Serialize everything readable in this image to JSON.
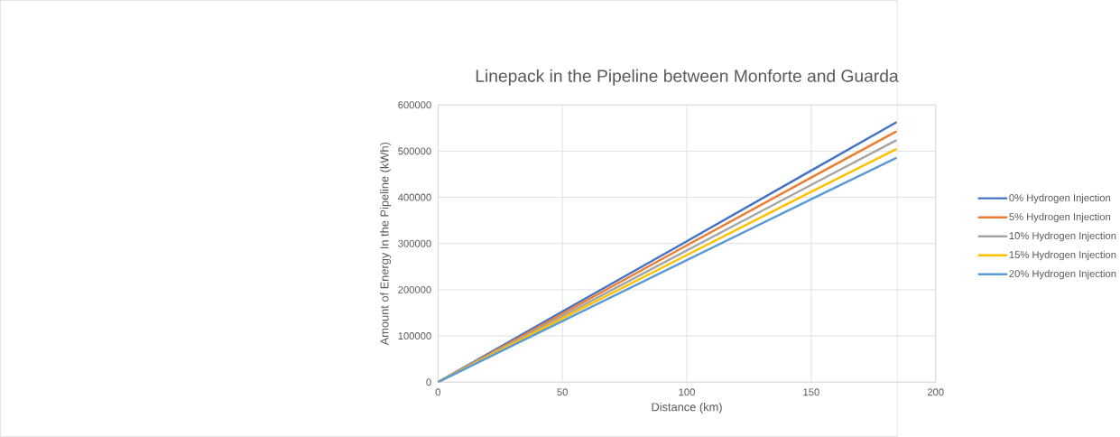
{
  "chart_data": {
    "type": "line",
    "title": "Linepack in the Pipeline between Monforte and Guarda",
    "xlabel": "Distance (km)",
    "ylabel": "Amount of Energy In the Pipeline (kWh)",
    "x": [
      0,
      50,
      100,
      150,
      184
    ],
    "series": [
      {
        "name": "0% Hydrogen Injection",
        "color": "#4472c4",
        "values": [
          0,
          153000,
          305000,
          458000,
          562000
        ]
      },
      {
        "name": "5% Hydrogen Injection",
        "color": "#ed7d31",
        "values": [
          0,
          148000,
          296000,
          443000,
          542000
        ]
      },
      {
        "name": "10% Hydrogen Injection",
        "color": "#a5a5a5",
        "values": [
          0,
          143000,
          285000,
          427000,
          523000
        ]
      },
      {
        "name": "15% Hydrogen Injection",
        "color": "#ffc000",
        "values": [
          0,
          138000,
          275000,
          412000,
          504000
        ]
      },
      {
        "name": "20% Hydrogen Injection",
        "color": "#5b9bd5",
        "values": [
          0,
          132000,
          264000,
          396000,
          485000
        ]
      }
    ],
    "xlim": [
      0,
      200
    ],
    "xticks": [
      0,
      50,
      100,
      150,
      200
    ],
    "ylim": [
      0,
      600000
    ],
    "yticks": [
      0,
      100000,
      200000,
      300000,
      400000,
      500000,
      600000
    ],
    "grid": true,
    "legend": "right",
    "marker": "none",
    "line_style": "solid"
  }
}
